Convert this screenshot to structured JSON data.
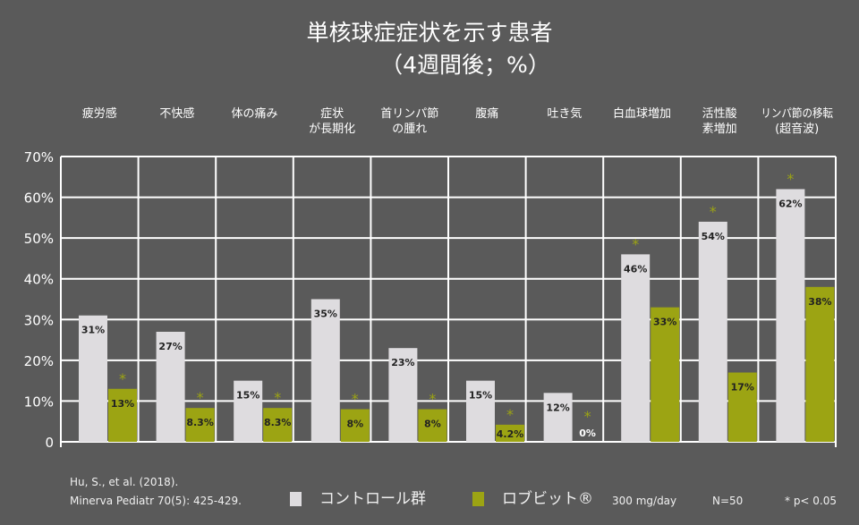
{
  "chart_data": {
    "type": "bar",
    "title": "単核球症症状を示す患者",
    "subtitle": "（4週間後；%）",
    "categories": [
      [
        "疲労感"
      ],
      [
        "不快感"
      ],
      [
        "体の痛み"
      ],
      [
        "症状",
        "が長期化"
      ],
      [
        "首リンパ節",
        "の腫れ"
      ],
      [
        "腹痛"
      ],
      [
        "吐き気"
      ],
      [
        "白血球増加"
      ],
      [
        "活性酸",
        "素増加"
      ],
      [
        "リンパ節の移転",
        "(超音波)"
      ]
    ],
    "series": [
      {
        "name": "コントロール群",
        "color": "#dedcdf",
        "values": [
          31,
          27,
          15,
          35,
          23,
          15,
          12,
          46,
          54,
          62
        ],
        "labels": [
          "31%",
          "27%",
          "15%",
          "35%",
          "23%",
          "15%",
          "12%",
          "46%",
          "54%",
          "62%"
        ],
        "significant": [
          false,
          false,
          false,
          false,
          false,
          false,
          false,
          true,
          true,
          true
        ]
      },
      {
        "name": "ロブビット®",
        "color": "#9ca413",
        "values": [
          13,
          8.3,
          8.3,
          8,
          8,
          4.2,
          0,
          33,
          17,
          38
        ],
        "labels": [
          "13%",
          "8.3%",
          "8.3%",
          "8%",
          "8%",
          "4.2%",
          "0%",
          "33%",
          "17%",
          "38%"
        ],
        "significant": [
          true,
          true,
          true,
          true,
          true,
          true,
          true,
          false,
          false,
          false
        ]
      }
    ],
    "yticks": [
      "0",
      "10%",
      "20%",
      "30%",
      "40%",
      "50%",
      "60%",
      "70%"
    ],
    "ylim": [
      0,
      70
    ],
    "grid": true,
    "significance_marker": "*"
  },
  "footer": {
    "citation_line1": "Hu, S., et al. (2018).",
    "citation_line2": "Minerva Pediatr 70(5): 425-429.",
    "legend_control": "コントロール群",
    "legend_treatment": "ロブビット®",
    "dose": "300 mg/day",
    "n": "N=50",
    "pvalue": "* p< 0.05"
  }
}
